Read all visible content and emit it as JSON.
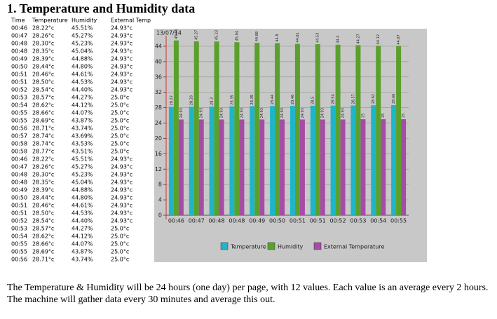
{
  "title": "1. Temperature and Humidity data",
  "table": {
    "header": [
      "Time",
      "Temperature",
      "Humidity",
      "External Temp"
    ],
    "rows": [
      [
        "00:46",
        "28.22°c",
        "45.51%",
        "24.93°c"
      ],
      [
        "00:47",
        "28.26°c",
        "45.27%",
        "24.93°c"
      ],
      [
        "00:48",
        "28.30°c",
        "45.23%",
        "24.93°c"
      ],
      [
        "00:48",
        "28.35°c",
        "45.04%",
        "24.93°c"
      ],
      [
        "00:49",
        "28.39°c",
        "44.88%",
        "24.93°c"
      ],
      [
        "00:50",
        "28.44°c",
        "44.80%",
        "24.93°c"
      ],
      [
        "00:51",
        "28.46°c",
        "44.61%",
        "24.93°c"
      ],
      [
        "00:51",
        "28.50°c",
        "44.53%",
        "24.93°c"
      ],
      [
        "00:52",
        "28.54°c",
        "44.40%",
        "24.93°c"
      ],
      [
        "00:53",
        "28.57°c",
        "44.27%",
        "25.0°c"
      ],
      [
        "00:54",
        "28.62°c",
        "44.12%",
        "25.0°c"
      ],
      [
        "00:55",
        "28.66°c",
        "44.07%",
        "25.0°c"
      ],
      [
        "00:55",
        "28.69°c",
        "43.87%",
        "25.0°c"
      ],
      [
        "00:56",
        "28.71°c",
        "43.74%",
        "25.0°c"
      ],
      [
        "00:57",
        "28.74°c",
        "43.69%",
        "25.0°c"
      ],
      [
        "00:58",
        "28.74°c",
        "43.53%",
        "25.0°c"
      ],
      [
        "00:58",
        "28.77°c",
        "43.51%",
        "25.0°c"
      ],
      [
        "00:46",
        "28.22°c",
        "45.51%",
        "24.93°c"
      ],
      [
        "00:47",
        "28.26°c",
        "45.27%",
        "24.93°c"
      ],
      [
        "00:48",
        "28.30°c",
        "45.23%",
        "24.93°c"
      ],
      [
        "00:48",
        "28.35°c",
        "45.04%",
        "24.93°c"
      ],
      [
        "00:49",
        "28.39°c",
        "44.88%",
        "24.93°c"
      ],
      [
        "00:50",
        "28.44°c",
        "44.80%",
        "24.93°c"
      ],
      [
        "00:51",
        "28.46°c",
        "44.61%",
        "24.93°c"
      ],
      [
        "00:51",
        "28.50°c",
        "44.53%",
        "24.93°c"
      ],
      [
        "00:52",
        "28.54°c",
        "44.40%",
        "24.93°c"
      ],
      [
        "00:53",
        "28.57°c",
        "44.27%",
        "25.0°c"
      ],
      [
        "00:54",
        "28.62°c",
        "44.12%",
        "25.0°c"
      ],
      [
        "00:55",
        "28.66°c",
        "44.07%",
        "25.0°c"
      ],
      [
        "00:55",
        "28.69°c",
        "43.87%",
        "25.0°c"
      ],
      [
        "00:56",
        "28.71°c",
        "43.74%",
        "25.0°c"
      ]
    ]
  },
  "chart_data": {
    "type": "bar",
    "subtitle": "13/07/14",
    "categories": [
      "00:46",
      "00:47",
      "00:48",
      "00:48",
      "00:49",
      "00:50",
      "00:51",
      "00:51",
      "00:52",
      "00:53",
      "00:54",
      "00:55"
    ],
    "series": [
      {
        "name": "Temperature",
        "color": "#1fb5c9",
        "values": [
          28.22,
          28.26,
          28.3,
          28.35,
          28.39,
          28.44,
          28.46,
          28.5,
          28.54,
          28.57,
          28.62,
          28.66
        ]
      },
      {
        "name": "Humidity",
        "color": "#5aa02c",
        "values": [
          45.51,
          45.27,
          45.23,
          45.04,
          44.88,
          44.8,
          44.61,
          44.53,
          44.4,
          44.27,
          44.12,
          44.07
        ]
      },
      {
        "name": "External Temperature",
        "color": "#a64ca6",
        "values": [
          24.93,
          24.93,
          24.93,
          24.93,
          24.93,
          24.93,
          24.93,
          24.93,
          24.93,
          25.0,
          25.0,
          25.0
        ]
      }
    ],
    "ylim": [
      0,
      46
    ],
    "yticks": [
      0,
      4,
      8,
      12,
      16,
      20,
      24,
      28,
      32,
      36,
      40,
      44
    ],
    "grid": true,
    "legend": "bottom"
  },
  "paragraph": "The Temperature & Humidity will be 24 hours (one day) per page, with 12 values. Each value is an average every 2 hours. The machine will gather data every 30 minutes and average this out."
}
